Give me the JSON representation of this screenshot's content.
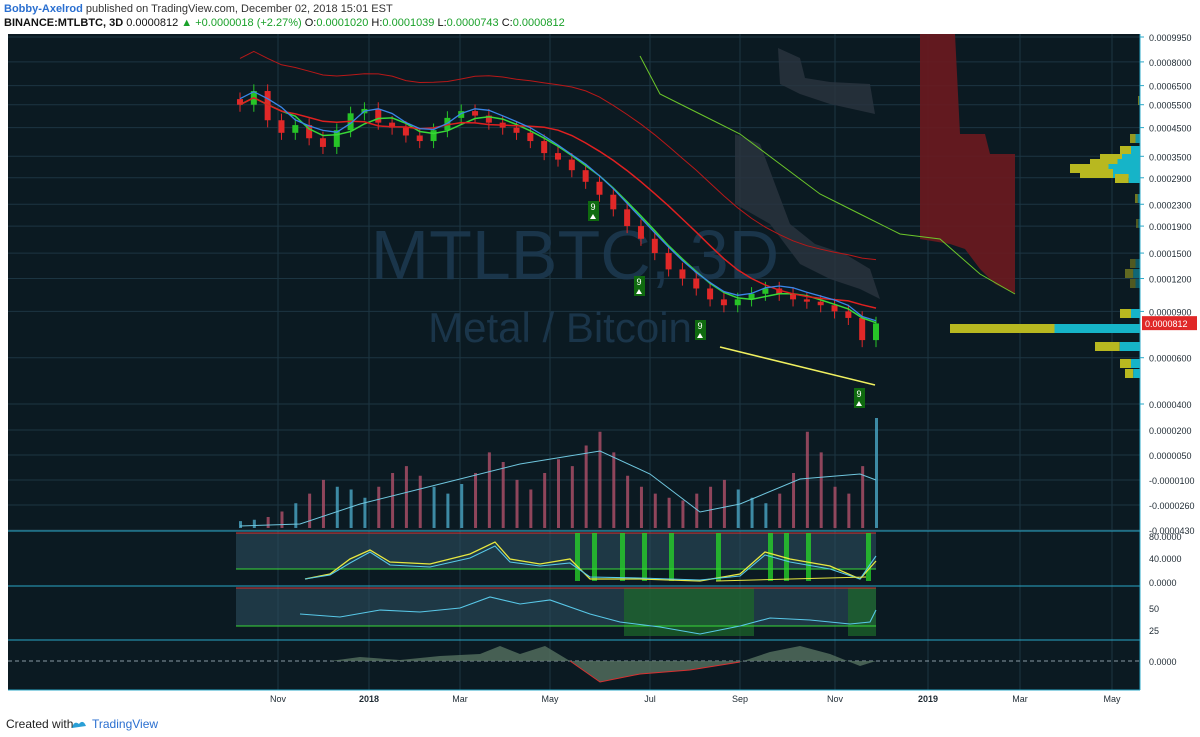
{
  "header": {
    "user": "Bobby-Axelrod",
    "published": " published on TradingView.com, December 02, 2018 15:01 EST",
    "symbol": "BINANCE:MTLBTC, 3D",
    "last": "0.0000812",
    "change": "▲ +0.0000018 (+2.27%)",
    "o_label": "O:",
    "o": "0.0001020",
    "h_label": "H:",
    "h": "0.0001039",
    "l_label": "L:",
    "l": "0.0000743",
    "c_label": "C:",
    "c": "0.0000812"
  },
  "watermark": {
    "line1": "MTLBTC, 3D",
    "line2": "Metal / Bitcoin"
  },
  "footer": {
    "created_with": "Created with",
    "brand": "TradingView"
  },
  "colors": {
    "background": "#0b1a22",
    "grid": "#1c3542",
    "axis_line": "#2aa7c7",
    "up": "#27c427",
    "down": "#e02828",
    "ema_green": "#38d838",
    "ema_red": "#e02020",
    "kijun_blue": "#3a86e8",
    "cloud_red": "#6b1a1f",
    "trendline": "#f0f060",
    "volume_profile_yellow": "#b8b820",
    "volume_profile_cyan": "#16b4c8",
    "price_tag": "#e02828"
  },
  "chart_data": {
    "type": "candlestick",
    "symbol": "BINANCE:MTLBTC",
    "timeframe": "3D",
    "x_ticks": [
      "Nov",
      "2018",
      "Mar",
      "May",
      "Jul",
      "Sep",
      "Nov",
      "2019",
      "Mar",
      "May"
    ],
    "price_axis": {
      "ticks": [
        "0.0009950",
        "0.0008000",
        "0.0006500",
        "0.0005500",
        "0.0004500",
        "0.0003500",
        "0.0002900",
        "0.0002300",
        "0.0001900",
        "0.0001500",
        "0.0001200",
        "0.0000900",
        "0.0000600",
        "0.0000400"
      ],
      "ylim": [
        4e-05,
        0.000995
      ],
      "current_price": "0.0000812"
    },
    "volume_axis": {
      "ticks": [
        "0.0000200",
        "0.0000050",
        "-0.0000100",
        "-0.0000260",
        "-0.0000430"
      ]
    },
    "rsi_axis": {
      "ticks": [
        "80.0000",
        "40.0000",
        "0.0000"
      ]
    },
    "rsi2_axis": {
      "ticks": [
        "50",
        "25"
      ]
    },
    "macd_axis": {
      "ticks": [
        "0.0000"
      ]
    },
    "td_sequential_labels": [
      "9",
      "9",
      "9",
      "9"
    ],
    "price_series": [
      0.00055,
      0.00062,
      0.00048,
      0.00043,
      0.00046,
      0.00041,
      0.00038,
      0.00044,
      0.00051,
      0.00053,
      0.00047,
      0.00045,
      0.00042,
      0.0004,
      0.00044,
      0.00049,
      0.00052,
      0.0005,
      0.00047,
      0.00045,
      0.00043,
      0.0004,
      0.00036,
      0.00034,
      0.00031,
      0.00028,
      0.00025,
      0.00022,
      0.00019,
      0.00017,
      0.00015,
      0.00013,
      0.00012,
      0.00011,
      0.0001,
      9.5e-05,
      0.0001,
      0.000105,
      0.00011,
      0.000105,
      0.0001,
      9.8e-05,
      9.5e-05,
      9e-05,
      8.5e-05,
      7e-05,
      8.1e-05
    ],
    "volume_series": [
      5,
      6,
      8,
      12,
      18,
      25,
      35,
      30,
      28,
      22,
      30,
      40,
      45,
      38,
      30,
      25,
      32,
      40,
      55,
      48,
      35,
      28,
      40,
      50,
      45,
      60,
      70,
      55,
      38,
      30,
      25,
      22,
      20,
      25,
      30,
      35,
      28,
      22,
      18,
      25,
      40,
      70,
      55,
      30,
      25,
      45,
      80
    ]
  }
}
